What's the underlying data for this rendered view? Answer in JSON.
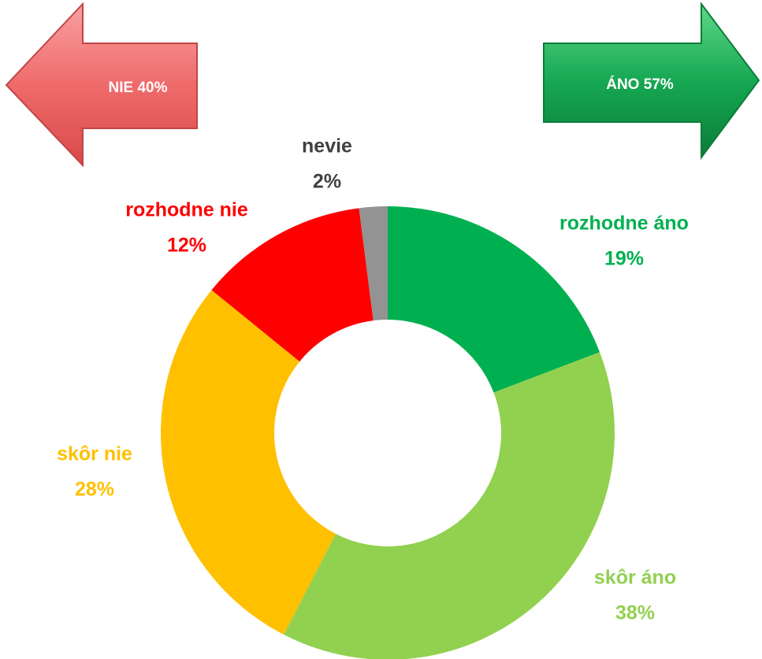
{
  "chart_data": {
    "type": "donut",
    "categories": [
      "rozhodne áno",
      "skôr áno",
      "skôr nie",
      "rozhodne nie",
      "nevie"
    ],
    "values": [
      19,
      38,
      28,
      12,
      2
    ],
    "value_labels": [
      "19%",
      "38%",
      "28%",
      "12%",
      "2%"
    ],
    "colors": [
      "#00b050",
      "#92d050",
      "#ffc000",
      "#ff0000",
      "#939393"
    ],
    "label_colors": [
      "#00b050",
      "#92d050",
      "#ffc000",
      "#ff0000",
      "#404040"
    ],
    "annotations": [
      {
        "text": "NIE 40%"
      },
      {
        "text": "ÁNO 57%"
      }
    ]
  }
}
